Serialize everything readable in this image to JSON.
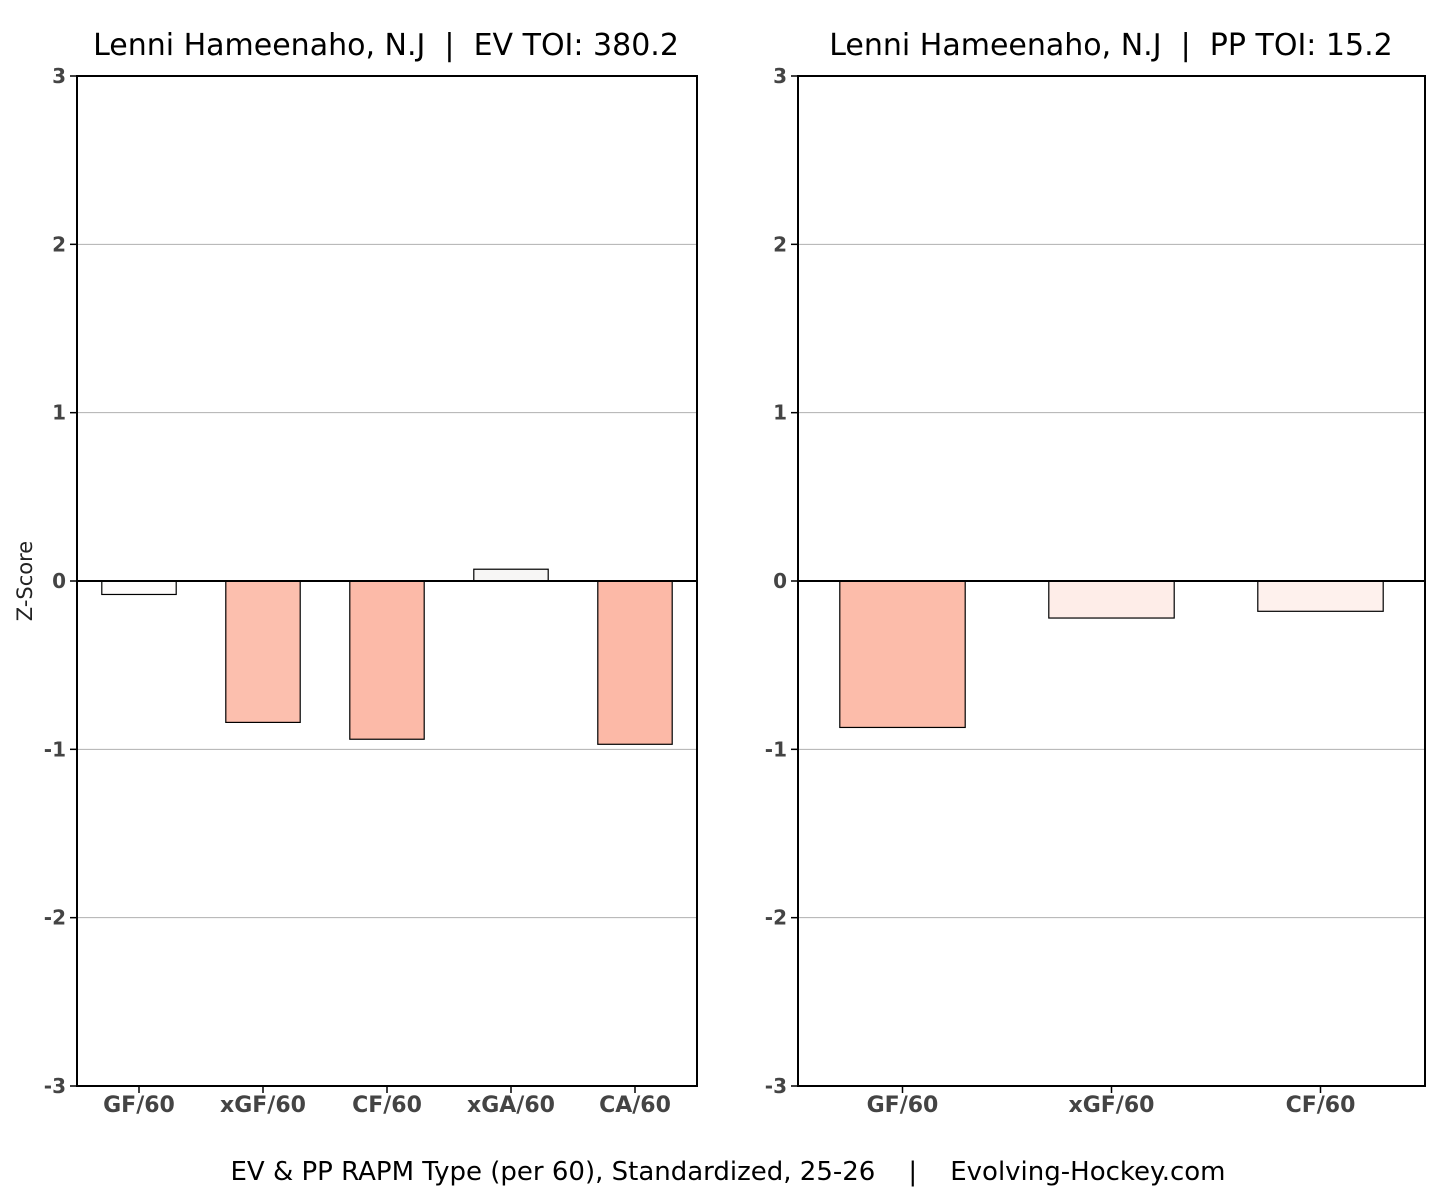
{
  "caption": "EV & PP RAPM Type (per 60), Standardized, 25-26    |    Evolving-Hockey.com",
  "chart_data": [
    {
      "type": "bar",
      "title": "Lenni Hameenaho, N.J  |  EV TOI: 380.2",
      "ylabel": "Z-Score",
      "xlabel": "",
      "ylim": [
        -3,
        3
      ],
      "yticks": [
        -3,
        -2,
        -1,
        0,
        1,
        2,
        3
      ],
      "grid": true,
      "categories": [
        "GF/60",
        "xGF/60",
        "CF/60",
        "xGA/60",
        "CA/60"
      ],
      "values": [
        -0.08,
        -0.84,
        -0.94,
        0.07,
        -0.97
      ],
      "colors": [
        "#fefcfb",
        "#fcbfae",
        "#fcbaa8",
        "#f7f6f5",
        "#fcb9a7"
      ]
    },
    {
      "type": "bar",
      "title": "Lenni Hameenaho, N.J  |  PP TOI: 15.2",
      "ylabel": "",
      "xlabel": "",
      "ylim": [
        -3,
        3
      ],
      "yticks": [
        -3,
        -2,
        -1,
        0,
        1,
        2,
        3
      ],
      "grid": true,
      "categories": [
        "GF/60",
        "xGF/60",
        "CF/60"
      ],
      "values": [
        -0.87,
        -0.22,
        -0.18
      ],
      "colors": [
        "#fcbcaa",
        "#feede8",
        "#fef1ed"
      ]
    }
  ]
}
